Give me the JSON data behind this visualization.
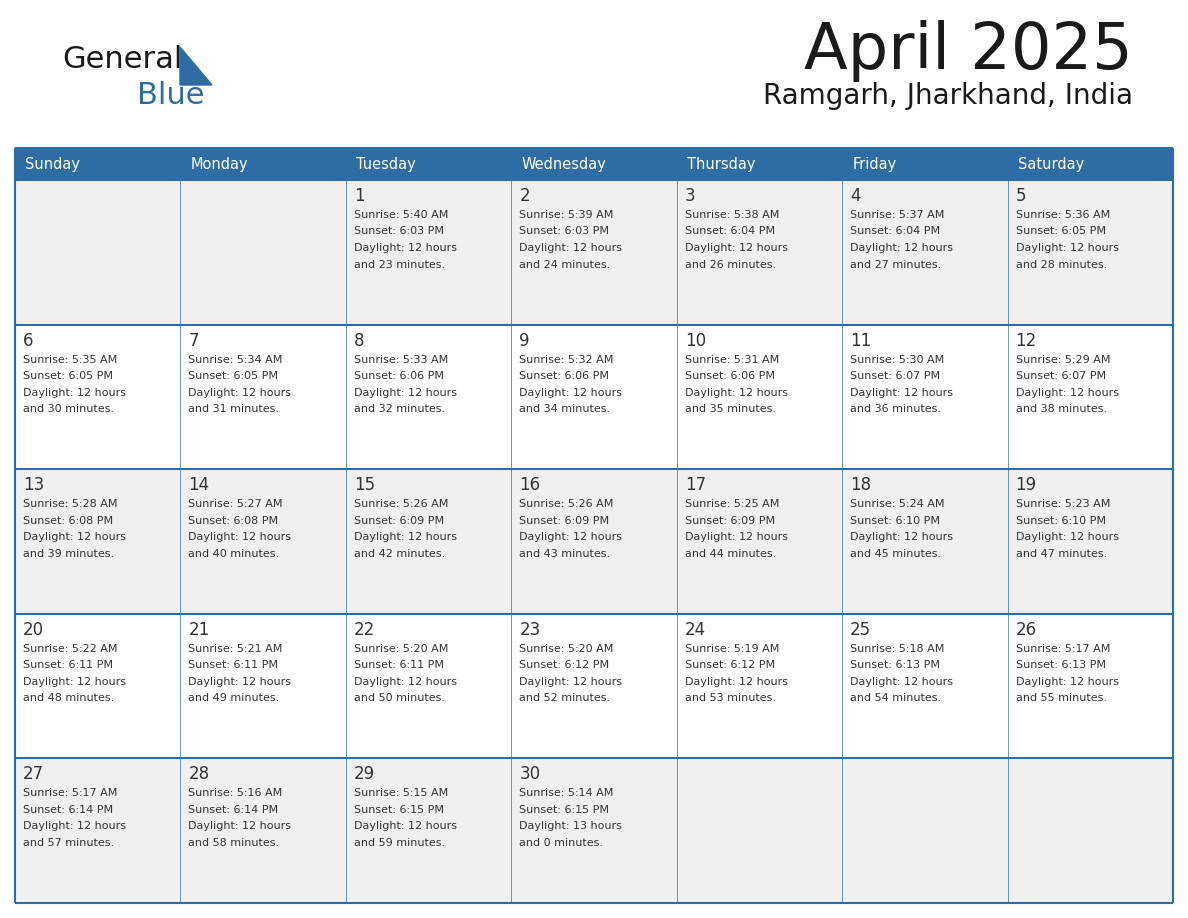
{
  "title": "April 2025",
  "subtitle": "Ramgarh, Jharkhand, India",
  "header_bg_color": "#2E6DA4",
  "header_text_color": "#FFFFFF",
  "cell_bg_color_light": "#F0F0F0",
  "cell_bg_color_white": "#FFFFFF",
  "text_color": "#333333",
  "border_color": "#2E6DA4",
  "days_of_week": [
    "Sunday",
    "Monday",
    "Tuesday",
    "Wednesday",
    "Thursday",
    "Friday",
    "Saturday"
  ],
  "calendar_data": [
    [
      {
        "day": null,
        "info": ""
      },
      {
        "day": null,
        "info": ""
      },
      {
        "day": 1,
        "info": "Sunrise: 5:40 AM\nSunset: 6:03 PM\nDaylight: 12 hours\nand 23 minutes."
      },
      {
        "day": 2,
        "info": "Sunrise: 5:39 AM\nSunset: 6:03 PM\nDaylight: 12 hours\nand 24 minutes."
      },
      {
        "day": 3,
        "info": "Sunrise: 5:38 AM\nSunset: 6:04 PM\nDaylight: 12 hours\nand 26 minutes."
      },
      {
        "day": 4,
        "info": "Sunrise: 5:37 AM\nSunset: 6:04 PM\nDaylight: 12 hours\nand 27 minutes."
      },
      {
        "day": 5,
        "info": "Sunrise: 5:36 AM\nSunset: 6:05 PM\nDaylight: 12 hours\nand 28 minutes."
      }
    ],
    [
      {
        "day": 6,
        "info": "Sunrise: 5:35 AM\nSunset: 6:05 PM\nDaylight: 12 hours\nand 30 minutes."
      },
      {
        "day": 7,
        "info": "Sunrise: 5:34 AM\nSunset: 6:05 PM\nDaylight: 12 hours\nand 31 minutes."
      },
      {
        "day": 8,
        "info": "Sunrise: 5:33 AM\nSunset: 6:06 PM\nDaylight: 12 hours\nand 32 minutes."
      },
      {
        "day": 9,
        "info": "Sunrise: 5:32 AM\nSunset: 6:06 PM\nDaylight: 12 hours\nand 34 minutes."
      },
      {
        "day": 10,
        "info": "Sunrise: 5:31 AM\nSunset: 6:06 PM\nDaylight: 12 hours\nand 35 minutes."
      },
      {
        "day": 11,
        "info": "Sunrise: 5:30 AM\nSunset: 6:07 PM\nDaylight: 12 hours\nand 36 minutes."
      },
      {
        "day": 12,
        "info": "Sunrise: 5:29 AM\nSunset: 6:07 PM\nDaylight: 12 hours\nand 38 minutes."
      }
    ],
    [
      {
        "day": 13,
        "info": "Sunrise: 5:28 AM\nSunset: 6:08 PM\nDaylight: 12 hours\nand 39 minutes."
      },
      {
        "day": 14,
        "info": "Sunrise: 5:27 AM\nSunset: 6:08 PM\nDaylight: 12 hours\nand 40 minutes."
      },
      {
        "day": 15,
        "info": "Sunrise: 5:26 AM\nSunset: 6:09 PM\nDaylight: 12 hours\nand 42 minutes."
      },
      {
        "day": 16,
        "info": "Sunrise: 5:26 AM\nSunset: 6:09 PM\nDaylight: 12 hours\nand 43 minutes."
      },
      {
        "day": 17,
        "info": "Sunrise: 5:25 AM\nSunset: 6:09 PM\nDaylight: 12 hours\nand 44 minutes."
      },
      {
        "day": 18,
        "info": "Sunrise: 5:24 AM\nSunset: 6:10 PM\nDaylight: 12 hours\nand 45 minutes."
      },
      {
        "day": 19,
        "info": "Sunrise: 5:23 AM\nSunset: 6:10 PM\nDaylight: 12 hours\nand 47 minutes."
      }
    ],
    [
      {
        "day": 20,
        "info": "Sunrise: 5:22 AM\nSunset: 6:11 PM\nDaylight: 12 hours\nand 48 minutes."
      },
      {
        "day": 21,
        "info": "Sunrise: 5:21 AM\nSunset: 6:11 PM\nDaylight: 12 hours\nand 49 minutes."
      },
      {
        "day": 22,
        "info": "Sunrise: 5:20 AM\nSunset: 6:11 PM\nDaylight: 12 hours\nand 50 minutes."
      },
      {
        "day": 23,
        "info": "Sunrise: 5:20 AM\nSunset: 6:12 PM\nDaylight: 12 hours\nand 52 minutes."
      },
      {
        "day": 24,
        "info": "Sunrise: 5:19 AM\nSunset: 6:12 PM\nDaylight: 12 hours\nand 53 minutes."
      },
      {
        "day": 25,
        "info": "Sunrise: 5:18 AM\nSunset: 6:13 PM\nDaylight: 12 hours\nand 54 minutes."
      },
      {
        "day": 26,
        "info": "Sunrise: 5:17 AM\nSunset: 6:13 PM\nDaylight: 12 hours\nand 55 minutes."
      }
    ],
    [
      {
        "day": 27,
        "info": "Sunrise: 5:17 AM\nSunset: 6:14 PM\nDaylight: 12 hours\nand 57 minutes."
      },
      {
        "day": 28,
        "info": "Sunrise: 5:16 AM\nSunset: 6:14 PM\nDaylight: 12 hours\nand 58 minutes."
      },
      {
        "day": 29,
        "info": "Sunrise: 5:15 AM\nSunset: 6:15 PM\nDaylight: 12 hours\nand 59 minutes."
      },
      {
        "day": 30,
        "info": "Sunrise: 5:14 AM\nSunset: 6:15 PM\nDaylight: 13 hours\nand 0 minutes."
      },
      {
        "day": null,
        "info": ""
      },
      {
        "day": null,
        "info": ""
      },
      {
        "day": null,
        "info": ""
      }
    ]
  ]
}
